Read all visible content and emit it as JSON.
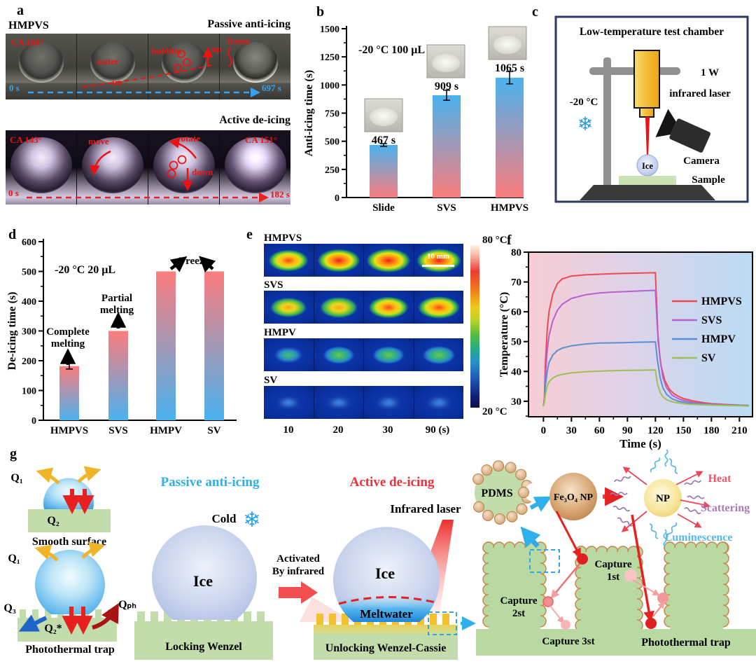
{
  "panels": {
    "a": {
      "label": "a",
      "sample": "HMPVS",
      "top_title": "Passive anti-icing",
      "bottom_title": "Active de-icing",
      "top": {
        "ca": "CA 160°",
        "water": "water",
        "ice": "ice",
        "bubbles": "bubbles",
        "up": "up",
        "freeze": "freeze",
        "t_start": "0 s",
        "t_end": "697 s"
      },
      "bottom": {
        "ca_start": "CA 143°",
        "move": "move",
        "rotate": "rotate",
        "down": "down",
        "ca_end": "CA 151°",
        "t_start": "0 s",
        "t_end": "182 s"
      }
    },
    "b": {
      "label": "b"
    },
    "c": {
      "label": "c",
      "title": "Low-temperature test chamber",
      "power": "1 W",
      "laser": "infrared laser",
      "temp": "-20 °C",
      "snowflake": "❄",
      "camera": "Camera",
      "ice": "Ice",
      "sample": "Sample"
    },
    "d": {
      "label": "d"
    },
    "e": {
      "label": "e",
      "rows": [
        {
          "name": "HMPVS"
        },
        {
          "name": "SVS"
        },
        {
          "name": "HMPV"
        },
        {
          "name": "SV"
        }
      ],
      "times": [
        "10",
        "20",
        "30",
        "90 (s)"
      ],
      "scale_bar": "10 mm",
      "colorbar_top": "80 °C",
      "colorbar_bottom": "20 °C"
    },
    "f": {
      "label": "f"
    },
    "g": {
      "label": "g",
      "smooth": {
        "q1": "Q₁",
        "q2": "Q₂",
        "caption": "Smooth surface"
      },
      "trap": {
        "q1": "Q₁",
        "q2": "Q₂*",
        "q3": "Q₃",
        "qph": "Qₚₕ",
        "caption": "Photothermal trap"
      },
      "passive": {
        "title": "Passive anti-icing",
        "cold": "Cold",
        "snowflake": "❄",
        "ice": "Ice",
        "caption": "Locking Wenzel"
      },
      "transition": {
        "line1": "Activated",
        "line2": "By infrared"
      },
      "active": {
        "title": "Active de-icing",
        "laser": "Infrared laser",
        "ice": "Ice",
        "meltwater": "Meltwater",
        "caption": "Unlocking Wenzel-Cassie"
      },
      "mech": {
        "pdms": "PDMS",
        "fe3o4": "Fe₃O₄ NP",
        "np": "NP",
        "heat": "Heat",
        "scattering": "Scattering",
        "luminescence": "Luminescence",
        "cap1a": "Capture",
        "cap1b": "1st",
        "cap2a": "Capture",
        "cap2b": "2st",
        "cap3": "Capture 3st",
        "trap": "Photothermal trap"
      }
    }
  },
  "chart_data": [
    {
      "panel": "b",
      "type": "bar",
      "title": "-20 °C 100 μL",
      "categories": [
        "Slide",
        "SVS",
        "HMPVS"
      ],
      "values": [
        467,
        909,
        1065
      ],
      "errors": [
        12,
        45,
        55
      ],
      "bar_labels": [
        "467 s",
        "909 s",
        "1065 s"
      ],
      "ylabel": "Anti-icing time (s)",
      "ylim": [
        0,
        1500
      ],
      "yticks": [
        0,
        250,
        500,
        750,
        1000,
        1250,
        1500
      ],
      "bar_gradient": [
        "#4ab2ef",
        "#fb7d7d"
      ]
    },
    {
      "panel": "d",
      "type": "bar",
      "title": "-20 °C  20 μL",
      "categories": [
        "HMPVS",
        "SVS",
        "HMPV",
        "SV"
      ],
      "values": [
        182,
        300,
        500,
        500
      ],
      "errors": [
        10,
        0,
        0,
        0
      ],
      "ylabel": "De-icing time (s)",
      "ylim": [
        0,
        600
      ],
      "yticks": [
        0,
        100,
        200,
        300,
        400,
        500,
        600
      ],
      "bar_gradient": [
        "#fb7d7d",
        "#4ab2ef"
      ],
      "annotations": [
        {
          "text": [
            "Complete",
            "melting"
          ],
          "target": 0
        },
        {
          "text": [
            "Partial",
            "melting"
          ],
          "target": 1
        },
        {
          "text": [
            "Freeze"
          ],
          "target": 2
        }
      ]
    },
    {
      "panel": "e",
      "type": "heatmap",
      "rows": [
        "HMPVS",
        "SVS",
        "HMPV",
        "SV"
      ],
      "times_s": [
        10,
        20,
        30,
        90
      ],
      "levels": [
        [
          0.8,
          0.92,
          0.97,
          1.0
        ],
        [
          0.65,
          0.72,
          0.8,
          0.88
        ],
        [
          0.3,
          0.42,
          0.45,
          0.48
        ],
        [
          0.12,
          0.15,
          0.17,
          0.18
        ]
      ],
      "scale_range_c": [
        20,
        80
      ]
    },
    {
      "panel": "f",
      "type": "line",
      "xlabel": "Time (s)",
      "ylabel": "Temperature (°C)",
      "xlim": [
        -16,
        224
      ],
      "ylim": [
        24.8,
        80
      ],
      "xticks": [
        0,
        30,
        60,
        90,
        120,
        150,
        180,
        210
      ],
      "yticks": [
        30,
        40,
        50,
        60,
        70,
        80
      ],
      "legend_position": "right",
      "series": [
        {
          "name": "HMPVS",
          "color": "#f0484f",
          "points": [
            [
              0,
              28.4
            ],
            [
              1,
              31
            ],
            [
              2,
              42
            ],
            [
              4,
              54
            ],
            [
              6,
              60
            ],
            [
              10,
              66
            ],
            [
              15,
              69.5
            ],
            [
              20,
              71
            ],
            [
              30,
              72
            ],
            [
              45,
              72.4
            ],
            [
              60,
              72.6
            ],
            [
              75,
              72.8
            ],
            [
              90,
              72.9
            ],
            [
              105,
              73
            ],
            [
              120,
              73.1
            ],
            [
              121,
              65
            ],
            [
              123,
              50
            ],
            [
              126,
              42
            ],
            [
              130,
              37
            ],
            [
              135,
              34
            ],
            [
              140,
              32.5
            ],
            [
              145,
              31.6
            ],
            [
              150,
              30.9
            ],
            [
              160,
              30.1
            ],
            [
              170,
              29.6
            ],
            [
              180,
              29.2
            ],
            [
              195,
              28.9
            ],
            [
              210,
              28.7
            ],
            [
              220,
              28.6
            ]
          ]
        },
        {
          "name": "SVS",
          "color": "#b85fd0",
          "points": [
            [
              0,
              28.4
            ],
            [
              1,
              30
            ],
            [
              2,
              38
            ],
            [
              4,
              47
            ],
            [
              6,
              52
            ],
            [
              10,
              57
            ],
            [
              15,
              60.5
            ],
            [
              20,
              62.5
            ],
            [
              30,
              64.5
            ],
            [
              45,
              65.7
            ],
            [
              60,
              66.3
            ],
            [
              75,
              66.6
            ],
            [
              90,
              66.8
            ],
            [
              105,
              67
            ],
            [
              120,
              67.2
            ],
            [
              122,
              55
            ],
            [
              125,
              44
            ],
            [
              128,
              38
            ],
            [
              132,
              34.5
            ],
            [
              138,
              32
            ],
            [
              145,
              30.8
            ],
            [
              150,
              30.3
            ],
            [
              160,
              29.6
            ],
            [
              175,
              29.1
            ],
            [
              190,
              28.8
            ],
            [
              210,
              28.6
            ],
            [
              220,
              28.5
            ]
          ]
        },
        {
          "name": "HMPV",
          "color": "#5b8fd4",
          "points": [
            [
              0,
              28.4
            ],
            [
              1,
              30
            ],
            [
              2,
              35
            ],
            [
              4,
              40
            ],
            [
              6,
              43
            ],
            [
              10,
              45.5
            ],
            [
              15,
              47
            ],
            [
              20,
              47.8
            ],
            [
              30,
              48.6
            ],
            [
              45,
              49.2
            ],
            [
              60,
              49.5
            ],
            [
              80,
              49.6
            ],
            [
              100,
              49.8
            ],
            [
              120,
              49.9
            ],
            [
              122,
              44
            ],
            [
              125,
              38
            ],
            [
              128,
              34.5
            ],
            [
              132,
              32.3
            ],
            [
              138,
              30.8
            ],
            [
              145,
              30
            ],
            [
              155,
              29.4
            ],
            [
              170,
              29
            ],
            [
              190,
              28.7
            ],
            [
              210,
              28.6
            ],
            [
              220,
              28.5
            ]
          ]
        },
        {
          "name": "SV",
          "color": "#9dc054",
          "points": [
            [
              0,
              28.4
            ],
            [
              1,
              29.5
            ],
            [
              2,
              32
            ],
            [
              4,
              35
            ],
            [
              6,
              36.5
            ],
            [
              10,
              37.8
            ],
            [
              15,
              38.6
            ],
            [
              20,
              39
            ],
            [
              30,
              39.5
            ],
            [
              45,
              39.9
            ],
            [
              60,
              40.1
            ],
            [
              80,
              40.3
            ],
            [
              100,
              40.4
            ],
            [
              120,
              40.5
            ],
            [
              122,
              36
            ],
            [
              125,
              33
            ],
            [
              128,
              31.5
            ],
            [
              132,
              30.5
            ],
            [
              138,
              29.8
            ],
            [
              145,
              29.4
            ],
            [
              155,
              29
            ],
            [
              170,
              28.8
            ],
            [
              190,
              28.6
            ],
            [
              210,
              28.5
            ],
            [
              220,
              28.4
            ]
          ]
        }
      ]
    }
  ]
}
